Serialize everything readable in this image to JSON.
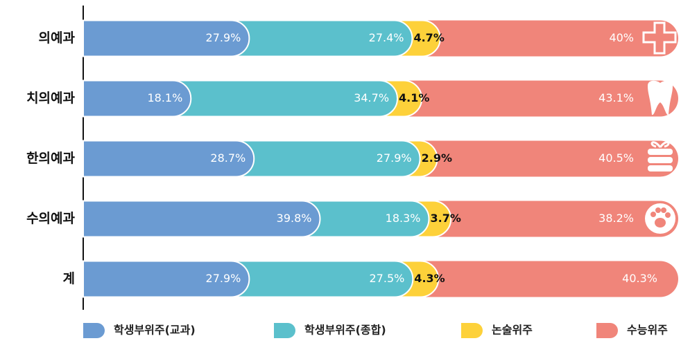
{
  "chart_data": {
    "type": "stacked-bar-horizontal",
    "categories": [
      "의예과",
      "치의예과",
      "한의예과",
      "수의예과",
      "계"
    ],
    "series": [
      {
        "name": "학생부위주(교과)",
        "color": "#6b9bd2",
        "values": [
          27.9,
          18.1,
          28.7,
          39.8,
          27.9
        ],
        "value_labels": [
          "27.9%",
          "18.1%",
          "28.7%",
          "39.8%",
          "27.9%"
        ]
      },
      {
        "name": "학생부위주(종합)",
        "color": "#5bc0cc",
        "values": [
          27.4,
          34.7,
          27.9,
          18.3,
          27.5
        ],
        "value_labels": [
          "27.4%",
          "34.7%",
          "27.9%",
          "18.3%",
          "27.5%"
        ]
      },
      {
        "name": "논술위주",
        "color": "#fdd13a",
        "values": [
          4.7,
          4.1,
          2.9,
          3.7,
          4.3
        ],
        "value_labels": [
          "4.7%",
          "4.1%",
          "2.9%",
          "3.7%",
          "4.3%"
        ]
      },
      {
        "name": "수능위주",
        "color": "#f0857a",
        "values": [
          40,
          43.1,
          40.5,
          38.2,
          40.3
        ],
        "value_labels": [
          "40%",
          "43.1%",
          "40.5%",
          "38.2%",
          "40.3%"
        ]
      }
    ],
    "xlim": [
      0,
      100
    ]
  }
}
